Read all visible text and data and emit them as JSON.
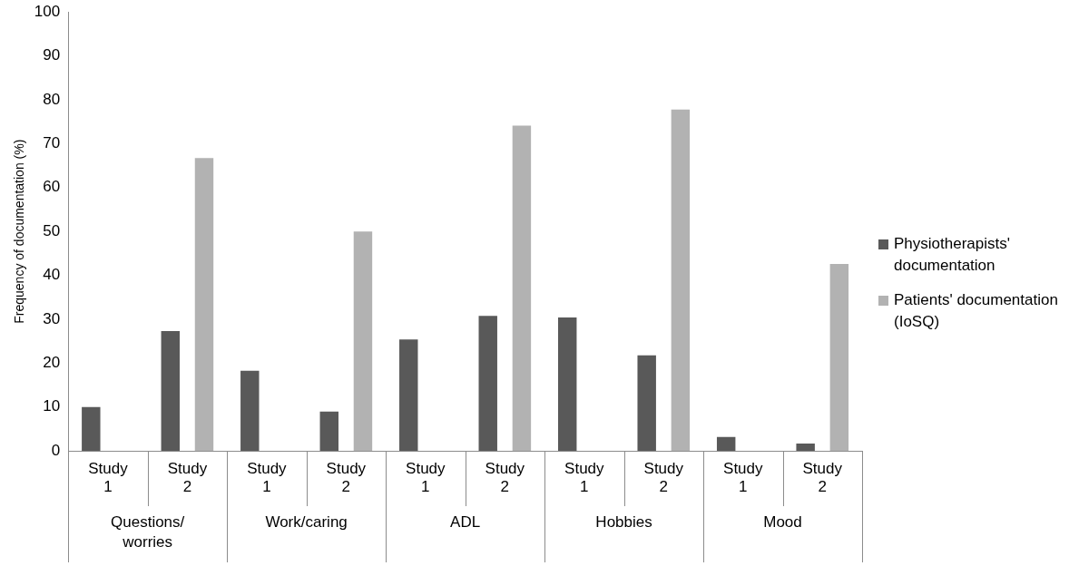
{
  "chart_data": {
    "type": "bar",
    "ylabel": "Frequency of documentation (%)",
    "categories": [
      "Study 1",
      "Study 2",
      "Study 1",
      "Study 2",
      "Study 1",
      "Study 2",
      "Study 1",
      "Study 2",
      "Study 1",
      "Study 2"
    ],
    "series": [
      {
        "name": "Physiotherapists' documentation",
        "color": "#595959",
        "values": [
          10,
          27.3,
          18.3,
          9,
          25.4,
          30.8,
          30.4,
          21.8,
          3.2,
          1.7
        ]
      },
      {
        "name": "Patients' documentation (IoSQ)",
        "color": "#b2b2b2",
        "values": [
          null,
          66.7,
          null,
          50,
          null,
          74.1,
          null,
          77.8,
          null,
          42.6
        ]
      }
    ],
    "annotations": [
      "Questions/ worries",
      "Work/caring",
      "ADL",
      "Hobbies",
      "Mood"
    ],
    "ylim": [
      0,
      100
    ],
    "yticks": [
      0,
      10,
      20,
      30,
      40,
      50,
      60,
      70,
      80,
      90,
      100
    ],
    "grid": false,
    "legend": "right"
  }
}
